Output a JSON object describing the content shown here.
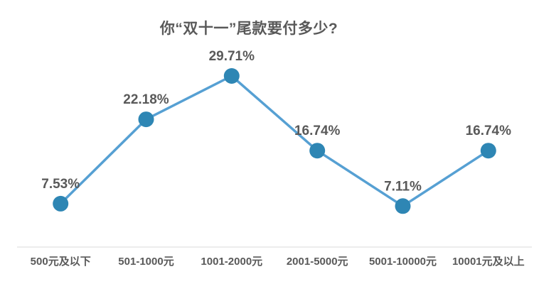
{
  "page": {
    "background": "#ffffff"
  },
  "chart_data": {
    "type": "line",
    "title": "你“双十一”尾款要付多少?",
    "categories": [
      "500元及以下",
      "501-1000元",
      "1001-2000元",
      "2001-5000元",
      "5001-10000元",
      "10001元及以上"
    ],
    "values": [
      7.53,
      22.18,
      29.71,
      16.74,
      7.11,
      16.74
    ],
    "data_labels": [
      "7.53%",
      "22.18%",
      "29.71%",
      "16.74%",
      "7.11%",
      "16.74%"
    ],
    "xlabel": "",
    "ylabel": "",
    "ylim": [
      0,
      35.5
    ],
    "grid": false,
    "legend": "none",
    "y_axis_visible": false,
    "x_axis_visible": true,
    "marker": "circle",
    "colors": {
      "line": "#56A0D3",
      "marker": "#2E86B4",
      "axis_line": "#D9D9D9",
      "text": "#595959"
    }
  }
}
